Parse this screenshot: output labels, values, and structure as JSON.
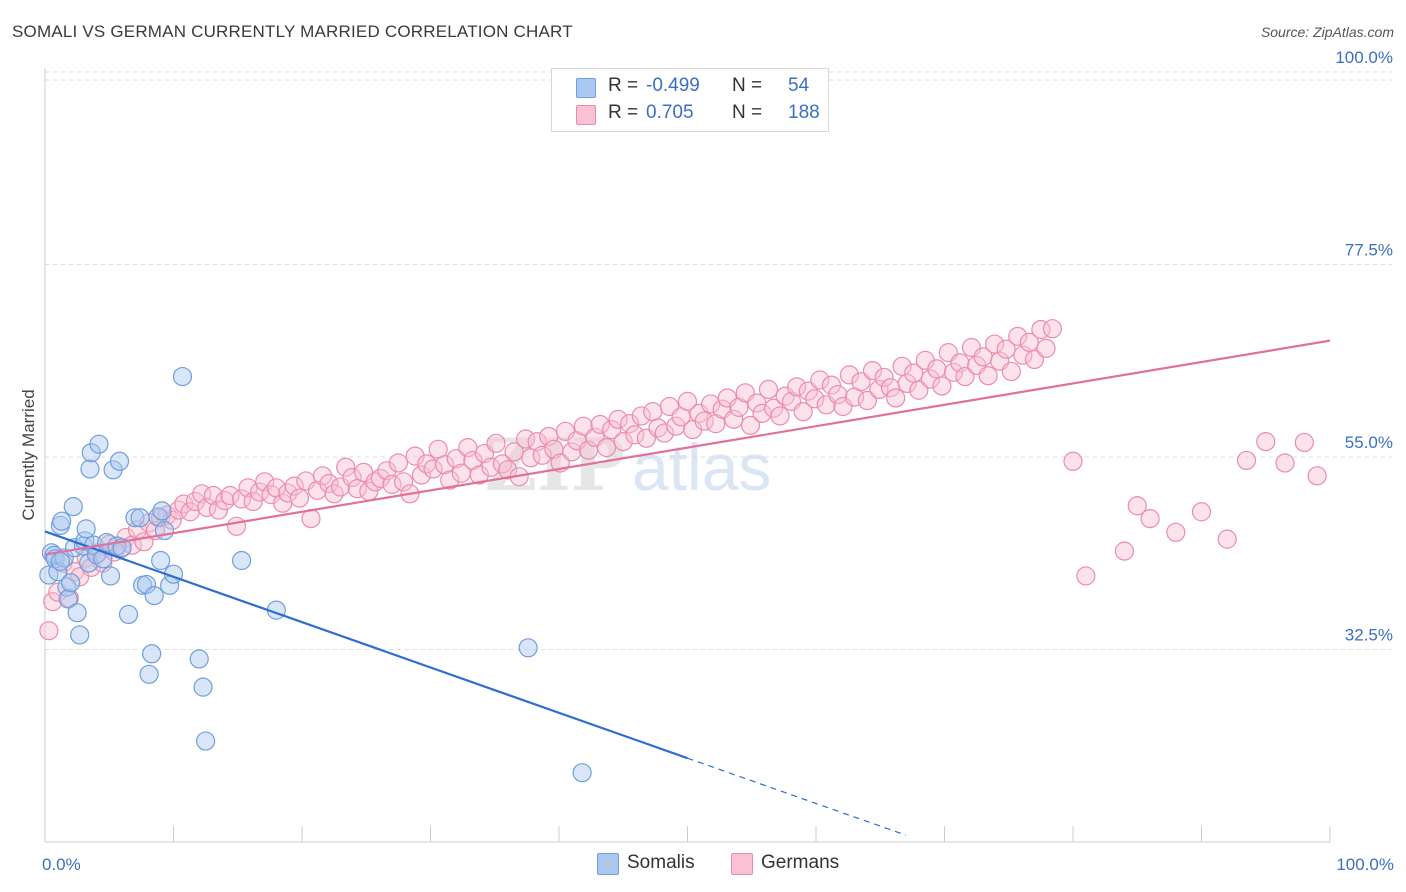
{
  "title": "SOMALI VS GERMAN CURRENTLY MARRIED CORRELATION CHART",
  "source": "Source: ZipAtlas.com",
  "watermark": {
    "zip": "ZIP",
    "atlas": "atlas"
  },
  "legend": {
    "rows": [
      {
        "r_label": "R =",
        "r_value": "-0.499",
        "n_label": "N =",
        "n_value": "54",
        "fill": "#aac8f0",
        "stroke": "#6f9fdc"
      },
      {
        "r_label": "R =",
        "r_value": "0.705",
        "n_label": "N =",
        "n_value": "188",
        "fill": "#f9c2d2",
        "stroke": "#ec8cab"
      }
    ]
  },
  "chart_data": {
    "type": "scatter",
    "title": "SOMALI VS GERMAN CURRENTLY MARRIED CORRELATION CHART",
    "xlabel": "",
    "ylabel": "Currently Married",
    "xlim": [
      0,
      100
    ],
    "ylim": [
      10,
      100
    ],
    "x_tick_labels": [
      {
        "value": 0,
        "label": "0.0%"
      },
      {
        "value": 100,
        "label": "100.0%"
      }
    ],
    "y_tick_labels": [
      {
        "value": 32.5,
        "label": "32.5%"
      },
      {
        "value": 55.0,
        "label": "55.0%"
      },
      {
        "value": 77.5,
        "label": "77.5%"
      },
      {
        "value": 100.0,
        "label": "100.0%"
      }
    ],
    "grid": true,
    "series": [
      {
        "name": "Somalis",
        "color": "#6f9fdc",
        "fill": "#aac8f0",
        "trend_color": "#2c6fd1",
        "trend": {
          "x0": 0,
          "y0": 46.3,
          "x1": 50,
          "y1": 19.8,
          "dash_to_x": 67,
          "dash_to_y": 10.8
        },
        "points": [
          [
            0.3,
            41.2
          ],
          [
            0.5,
            43.8
          ],
          [
            0.7,
            43.5
          ],
          [
            0.8,
            43.1
          ],
          [
            1.0,
            41.6
          ],
          [
            1.2,
            47.0
          ],
          [
            1.3,
            47.5
          ],
          [
            1.5,
            43.2
          ],
          [
            1.7,
            39.8
          ],
          [
            1.8,
            38.4
          ],
          [
            2.0,
            40.3
          ],
          [
            2.2,
            49.2
          ],
          [
            2.3,
            44.4
          ],
          [
            2.5,
            36.8
          ],
          [
            2.7,
            34.2
          ],
          [
            3.0,
            44.6
          ],
          [
            3.1,
            45.2
          ],
          [
            3.2,
            46.6
          ],
          [
            3.4,
            42.6
          ],
          [
            3.5,
            53.6
          ],
          [
            3.6,
            55.5
          ],
          [
            3.8,
            44.7
          ],
          [
            4.0,
            43.6
          ],
          [
            4.2,
            56.5
          ],
          [
            4.5,
            43.1
          ],
          [
            4.8,
            45.0
          ],
          [
            5.1,
            41.1
          ],
          [
            5.3,
            53.5
          ],
          [
            5.6,
            44.6
          ],
          [
            5.8,
            54.5
          ],
          [
            6.0,
            44.4
          ],
          [
            6.5,
            36.6
          ],
          [
            7.0,
            47.9
          ],
          [
            7.4,
            47.9
          ],
          [
            7.6,
            40.0
          ],
          [
            7.9,
            40.1
          ],
          [
            8.1,
            29.6
          ],
          [
            8.3,
            32.0
          ],
          [
            8.5,
            38.8
          ],
          [
            8.8,
            48.0
          ],
          [
            9.0,
            42.9
          ],
          [
            9.1,
            48.7
          ],
          [
            9.3,
            46.4
          ],
          [
            9.7,
            40.0
          ],
          [
            10.0,
            41.3
          ],
          [
            10.7,
            64.4
          ],
          [
            12.0,
            31.4
          ],
          [
            12.3,
            28.1
          ],
          [
            12.5,
            21.8
          ],
          [
            15.3,
            42.9
          ],
          [
            18.0,
            37.1
          ],
          [
            37.6,
            32.7
          ],
          [
            41.8,
            18.1
          ],
          [
            1.2,
            42.8
          ]
        ]
      },
      {
        "name": "Germans",
        "color": "#ec8cab",
        "fill": "#f9c2d2",
        "trend_color": "#e3709a",
        "trend": {
          "x0": 0,
          "y0": 43.6,
          "x1": 100,
          "y1": 68.6
        },
        "points": [
          [
            0.3,
            34.7
          ],
          [
            0.6,
            38.1
          ],
          [
            1.0,
            39.2
          ],
          [
            1.4,
            42.6
          ],
          [
            1.9,
            38.5
          ],
          [
            2.3,
            41.6
          ],
          [
            2.7,
            41.0
          ],
          [
            3.2,
            43.2
          ],
          [
            3.6,
            42.1
          ],
          [
            4.1,
            43.8
          ],
          [
            4.5,
            42.6
          ],
          [
            5.0,
            44.8
          ],
          [
            5.4,
            43.9
          ],
          [
            5.9,
            44.3
          ],
          [
            6.3,
            45.6
          ],
          [
            6.8,
            44.7
          ],
          [
            7.2,
            46.5
          ],
          [
            7.7,
            45.1
          ],
          [
            8.1,
            47.3
          ],
          [
            8.6,
            46.4
          ],
          [
            9.0,
            47.9
          ],
          [
            9.5,
            48.2
          ],
          [
            9.9,
            47.6
          ],
          [
            10.4,
            48.8
          ],
          [
            10.8,
            49.5
          ],
          [
            11.3,
            48.6
          ],
          [
            11.7,
            49.8
          ],
          [
            12.2,
            50.7
          ],
          [
            12.6,
            49.1
          ],
          [
            13.1,
            50.5
          ],
          [
            13.5,
            48.8
          ],
          [
            14.0,
            49.9
          ],
          [
            14.4,
            50.5
          ],
          [
            14.9,
            46.9
          ],
          [
            15.3,
            50.1
          ],
          [
            15.8,
            51.4
          ],
          [
            16.2,
            49.8
          ],
          [
            16.7,
            50.9
          ],
          [
            17.1,
            52.1
          ],
          [
            17.6,
            50.6
          ],
          [
            18.0,
            51.4
          ],
          [
            18.5,
            49.6
          ],
          [
            18.9,
            50.8
          ],
          [
            19.4,
            51.6
          ],
          [
            19.8,
            50.2
          ],
          [
            20.3,
            52.2
          ],
          [
            20.7,
            47.8
          ],
          [
            21.2,
            51.1
          ],
          [
            21.6,
            52.8
          ],
          [
            22.1,
            51.9
          ],
          [
            22.5,
            50.7
          ],
          [
            23.0,
            51.5
          ],
          [
            23.4,
            53.8
          ],
          [
            23.9,
            52.6
          ],
          [
            24.3,
            51.3
          ],
          [
            24.8,
            53.2
          ],
          [
            25.2,
            51.0
          ],
          [
            25.7,
            52.1
          ],
          [
            26.1,
            52.5
          ],
          [
            26.6,
            53.4
          ],
          [
            27.0,
            51.8
          ],
          [
            27.5,
            54.3
          ],
          [
            27.9,
            52.1
          ],
          [
            28.4,
            50.7
          ],
          [
            28.8,
            55.1
          ],
          [
            29.3,
            52.9
          ],
          [
            29.7,
            54.2
          ],
          [
            30.2,
            53.6
          ],
          [
            30.6,
            55.9
          ],
          [
            31.1,
            54.1
          ],
          [
            31.5,
            52.3
          ],
          [
            32.0,
            54.8
          ],
          [
            32.4,
            53.1
          ],
          [
            32.9,
            56.1
          ],
          [
            33.3,
            54.6
          ],
          [
            33.8,
            52.9
          ],
          [
            34.2,
            55.4
          ],
          [
            34.7,
            53.8
          ],
          [
            35.1,
            56.6
          ],
          [
            35.6,
            54.2
          ],
          [
            36.0,
            53.5
          ],
          [
            36.5,
            55.6
          ],
          [
            36.9,
            52.7
          ],
          [
            37.4,
            57.1
          ],
          [
            37.8,
            54.9
          ],
          [
            38.3,
            56.8
          ],
          [
            38.7,
            55.2
          ],
          [
            39.2,
            57.4
          ],
          [
            39.6,
            55.9
          ],
          [
            40.1,
            54.3
          ],
          [
            40.5,
            58.0
          ],
          [
            41.0,
            55.6
          ],
          [
            41.4,
            56.9
          ],
          [
            41.9,
            58.6
          ],
          [
            42.3,
            55.8
          ],
          [
            42.8,
            57.3
          ],
          [
            43.2,
            58.8
          ],
          [
            43.7,
            56.1
          ],
          [
            44.1,
            58.2
          ],
          [
            44.6,
            59.4
          ],
          [
            45.0,
            56.8
          ],
          [
            45.5,
            58.9
          ],
          [
            45.9,
            57.6
          ],
          [
            46.4,
            59.8
          ],
          [
            46.8,
            57.2
          ],
          [
            47.3,
            60.3
          ],
          [
            47.7,
            58.4
          ],
          [
            48.2,
            57.8
          ],
          [
            48.6,
            60.9
          ],
          [
            49.1,
            58.6
          ],
          [
            49.5,
            59.7
          ],
          [
            50.0,
            61.5
          ],
          [
            50.4,
            58.2
          ],
          [
            50.9,
            60.1
          ],
          [
            51.3,
            59.2
          ],
          [
            51.8,
            61.2
          ],
          [
            52.2,
            58.9
          ],
          [
            52.7,
            60.6
          ],
          [
            53.1,
            61.9
          ],
          [
            53.6,
            59.4
          ],
          [
            54.0,
            60.8
          ],
          [
            54.5,
            62.5
          ],
          [
            54.9,
            58.7
          ],
          [
            55.4,
            61.3
          ],
          [
            55.8,
            60.1
          ],
          [
            56.3,
            62.9
          ],
          [
            56.7,
            60.7
          ],
          [
            57.2,
            59.8
          ],
          [
            57.6,
            62.1
          ],
          [
            58.1,
            61.5
          ],
          [
            58.5,
            63.2
          ],
          [
            59.0,
            60.3
          ],
          [
            59.4,
            62.7
          ],
          [
            59.9,
            61.8
          ],
          [
            60.3,
            64.0
          ],
          [
            60.8,
            61.1
          ],
          [
            61.2,
            63.4
          ],
          [
            61.7,
            62.3
          ],
          [
            62.1,
            60.9
          ],
          [
            62.6,
            64.6
          ],
          [
            63.0,
            62.0
          ],
          [
            63.5,
            63.8
          ],
          [
            64.0,
            61.6
          ],
          [
            64.4,
            65.1
          ],
          [
            64.9,
            62.9
          ],
          [
            65.3,
            64.3
          ],
          [
            65.8,
            63.1
          ],
          [
            66.2,
            61.9
          ],
          [
            66.7,
            65.6
          ],
          [
            67.1,
            63.6
          ],
          [
            67.6,
            64.8
          ],
          [
            68.0,
            62.8
          ],
          [
            68.5,
            66.3
          ],
          [
            68.9,
            64.1
          ],
          [
            69.4,
            65.3
          ],
          [
            69.8,
            63.3
          ],
          [
            70.3,
            67.2
          ],
          [
            70.7,
            64.9
          ],
          [
            71.2,
            66.0
          ],
          [
            71.6,
            64.4
          ],
          [
            72.1,
            67.8
          ],
          [
            72.5,
            65.7
          ],
          [
            73.0,
            66.7
          ],
          [
            73.4,
            64.5
          ],
          [
            73.9,
            68.2
          ],
          [
            74.3,
            66.2
          ],
          [
            74.8,
            67.6
          ],
          [
            75.2,
            65.0
          ],
          [
            75.7,
            69.1
          ],
          [
            76.1,
            66.9
          ],
          [
            76.6,
            68.4
          ],
          [
            77.0,
            66.4
          ],
          [
            77.5,
            69.9
          ],
          [
            77.9,
            67.7
          ],
          [
            78.4,
            70.0
          ],
          [
            80.0,
            54.5
          ],
          [
            81.0,
            41.1
          ],
          [
            84.0,
            44.0
          ],
          [
            86.0,
            47.8
          ],
          [
            88.0,
            46.2
          ],
          [
            90.0,
            48.6
          ],
          [
            92.0,
            45.4
          ],
          [
            93.5,
            54.6
          ],
          [
            95.0,
            56.8
          ],
          [
            96.5,
            54.3
          ],
          [
            98.0,
            56.7
          ],
          [
            99.0,
            52.8
          ],
          [
            85.0,
            49.3
          ]
        ]
      }
    ],
    "legend": {
      "placement": "bottom",
      "entries": [
        "Somalis",
        "Germans"
      ]
    }
  },
  "bottom_legend": {
    "somalis": "Somalis",
    "germans": "Germans"
  }
}
